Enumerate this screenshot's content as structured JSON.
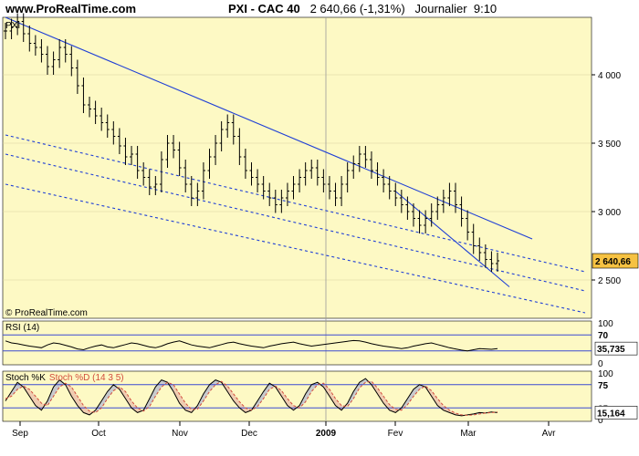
{
  "header": {
    "site": "www.ProRealTime.com",
    "instrument": "PXI - CAC 40",
    "last_value": "2 640,66",
    "change": "(-1,31%)",
    "period": "Journalier",
    "time": "9:10"
  },
  "colors": {
    "panel_bg": "#fdf9c4",
    "trend_line": "#1f3fd6",
    "candle": "#000000",
    "price_label_bg": "#f6c242",
    "rsi_band": "#3b4bd1",
    "stoch_k": "#000000",
    "stoch_d": "#d24c3c",
    "stoch_fill_pos": "#9aa4d6",
    "stoch_fill_neg": "#e3a7a0"
  },
  "chart_data": [
    {
      "type": "candlestick",
      "title": "PXI - CAC 40",
      "symbol_label": "PXI",
      "watermark": "© ProRealTime.com",
      "y_axis": {
        "ticks": [
          2500,
          3000,
          3500,
          4000
        ],
        "tick_labels": [
          "2 500",
          "3 000",
          "3 500",
          "4 000"
        ],
        "range": [
          2220,
          4420
        ]
      },
      "x_axis": {
        "labels": [
          "Sep",
          "Oct",
          "Nov",
          "Dec",
          "2009",
          "Fev",
          "Mar",
          "Avr"
        ]
      },
      "current_price_label": "2 640,66",
      "approx_close_series": [
        4320,
        4350,
        4390,
        4300,
        4230,
        4200,
        4150,
        4060,
        4110,
        4200,
        4150,
        4050,
        3920,
        3780,
        3750,
        3700,
        3650,
        3600,
        3550,
        3480,
        3400,
        3420,
        3300,
        3250,
        3180,
        3200,
        3380,
        3500,
        3450,
        3320,
        3200,
        3100,
        3150,
        3300,
        3400,
        3500,
        3600,
        3650,
        3550,
        3400,
        3300,
        3250,
        3200,
        3150,
        3100,
        3050,
        3100,
        3150,
        3200,
        3250,
        3300,
        3320,
        3250,
        3200,
        3150,
        3100,
        3200,
        3300,
        3350,
        3420,
        3380,
        3300,
        3250,
        3200,
        3150,
        3100,
        3050,
        3000,
        2950,
        2900,
        2950,
        3000,
        3050,
        3100,
        3150,
        3050,
        2950,
        2850,
        2750,
        2700,
        2650,
        2620,
        2640
      ],
      "trend_lines": [
        {
          "style": "solid",
          "from": [
            "Sep",
            4420
          ],
          "to": [
            "Mar",
            2800
          ]
        },
        {
          "style": "solid",
          "from": [
            "Fev",
            3150
          ],
          "to": [
            "Mar",
            2450
          ]
        },
        {
          "style": "dashed",
          "from": [
            "Sep",
            3560
          ],
          "to": [
            "Avr",
            2560
          ]
        },
        {
          "style": "dashed",
          "from": [
            "Sep",
            3420
          ],
          "to": [
            "Avr",
            2420
          ]
        },
        {
          "style": "dashed",
          "from": [
            "Sep",
            3200
          ],
          "to": [
            "Avr",
            2260
          ]
        }
      ]
    },
    {
      "type": "line",
      "title": "RSI (14)",
      "y_axis": {
        "ticks": [
          0,
          30,
          70,
          100
        ],
        "tick_labels": [
          "0",
          "30",
          "70",
          "100"
        ],
        "range": [
          0,
          100
        ]
      },
      "bands": [
        30,
        70
      ],
      "current_value_label": "35,735",
      "series": [
        {
          "name": "RSI (14)",
          "values": [
            55,
            50,
            48,
            45,
            42,
            40,
            38,
            45,
            50,
            48,
            44,
            40,
            35,
            33,
            38,
            42,
            45,
            40,
            38,
            42,
            46,
            50,
            48,
            44,
            40,
            38,
            42,
            48,
            52,
            55,
            50,
            45,
            42,
            40,
            38,
            42,
            46,
            50,
            52,
            48,
            45,
            42,
            40,
            38,
            42,
            45,
            48,
            50,
            52,
            48,
            45,
            42,
            44,
            46,
            48,
            50,
            52,
            54,
            56,
            55,
            52,
            48,
            45,
            42,
            40,
            38,
            36,
            38,
            42,
            45,
            48,
            50,
            46,
            42,
            38,
            35,
            32,
            30,
            33,
            36,
            35,
            34,
            36
          ]
        }
      ]
    },
    {
      "type": "line",
      "title": "Stoch %K  Stoch %D (14 3 5)",
      "legend": [
        "Stoch %K",
        "Stoch %D (14 3 5)"
      ],
      "y_axis": {
        "ticks": [
          0,
          25,
          75,
          100
        ],
        "tick_labels": [
          "0",
          "25",
          "75",
          "100"
        ],
        "range": [
          0,
          100
        ]
      },
      "bands": [
        25,
        75
      ],
      "current_value_label": "15,164",
      "series": [
        {
          "name": "Stoch %K",
          "values": [
            40,
            60,
            80,
            70,
            50,
            30,
            20,
            40,
            70,
            85,
            75,
            50,
            30,
            15,
            10,
            20,
            40,
            60,
            75,
            65,
            45,
            25,
            15,
            20,
            45,
            70,
            85,
            80,
            60,
            35,
            20,
            15,
            30,
            55,
            75,
            85,
            80,
            60,
            40,
            25,
            15,
            20,
            40,
            60,
            78,
            70,
            50,
            30,
            20,
            30,
            55,
            75,
            80,
            70,
            50,
            30,
            20,
            35,
            60,
            80,
            88,
            75,
            55,
            35,
            20,
            15,
            25,
            45,
            65,
            75,
            70,
            50,
            30,
            20,
            15,
            10,
            8,
            10,
            12,
            15,
            14,
            16,
            15
          ]
        },
        {
          "name": "Stoch %D (14 3 5)",
          "values": [
            45,
            50,
            65,
            72,
            65,
            50,
            35,
            30,
            50,
            70,
            78,
            70,
            50,
            30,
            18,
            15,
            25,
            45,
            62,
            70,
            60,
            40,
            25,
            18,
            28,
            50,
            70,
            80,
            75,
            55,
            35,
            22,
            22,
            40,
            60,
            75,
            82,
            72,
            55,
            38,
            25,
            20,
            28,
            45,
            65,
            72,
            62,
            45,
            30,
            25,
            38,
            60,
            75,
            78,
            65,
            45,
            30,
            28,
            45,
            68,
            80,
            82,
            68,
            50,
            32,
            22,
            20,
            32,
            50,
            65,
            72,
            62,
            45,
            30,
            20,
            14,
            10,
            9,
            10,
            12,
            14,
            15,
            16
          ]
        }
      ]
    }
  ]
}
